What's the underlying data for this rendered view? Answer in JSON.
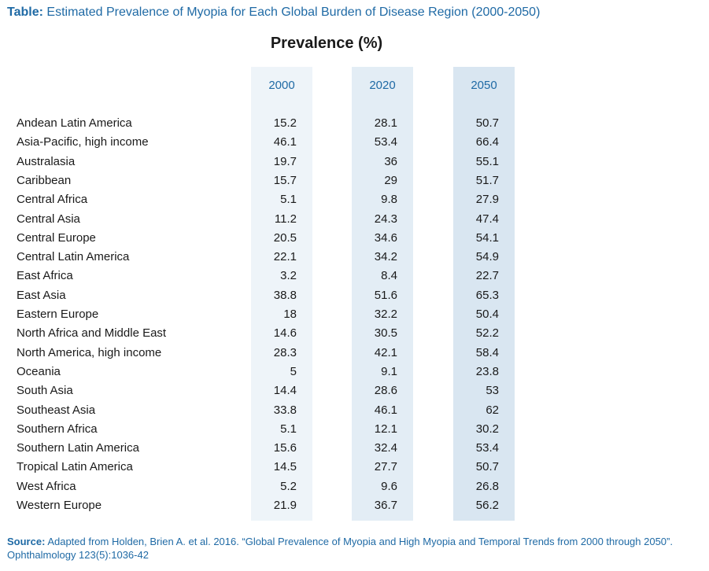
{
  "title": {
    "label": "Table:",
    "text": "Estimated Prevalence of Myopia for Each Global Burden of Disease Region (2000-2050)"
  },
  "heading": "Prevalence (%)",
  "source": {
    "label": "Source:",
    "text": "Adapted from Holden, Brien A. et al. 2016. “Global Prevalence of Myopia and High Myopia and Temporal Trends from 2000 through 2050”. Ophthalmology 123(5):1036-42"
  },
  "colors": {
    "accent": "#1f6aa5",
    "col_2000_bg": "#eef4f9",
    "col_2020_bg": "#e3edf5",
    "col_2050_bg": "#d9e6f1"
  },
  "chart_data": {
    "type": "table",
    "title": "Estimated Prevalence of Myopia for Each Global Burden of Disease Region (2000-2050)",
    "value_label": "Prevalence (%)",
    "columns": [
      "2000",
      "2020",
      "2050"
    ],
    "rows": [
      {
        "region": "Andean Latin America",
        "values": [
          "15.2",
          "28.1",
          "50.7"
        ]
      },
      {
        "region": "Asia-Pacific,  high income",
        "values": [
          "46.1",
          "53.4",
          "66.4"
        ]
      },
      {
        "region": "Australasia",
        "values": [
          "19.7",
          "36",
          "55.1"
        ]
      },
      {
        "region": "Caribbean",
        "values": [
          "15.7",
          "29",
          "51.7"
        ]
      },
      {
        "region": "Central Africa",
        "values": [
          "5.1",
          "9.8",
          "27.9"
        ]
      },
      {
        "region": "Central Asia",
        "values": [
          "11.2",
          "24.3",
          "47.4"
        ]
      },
      {
        "region": "Central Europe",
        "values": [
          "20.5",
          "34.6",
          "54.1"
        ]
      },
      {
        "region": "Central Latin America",
        "values": [
          "22.1",
          "34.2",
          "54.9"
        ]
      },
      {
        "region": "East Africa",
        "values": [
          "3.2",
          "8.4",
          "22.7"
        ]
      },
      {
        "region": "East Asia",
        "values": [
          "38.8",
          "51.6",
          "65.3"
        ]
      },
      {
        "region": "Eastern Europe",
        "values": [
          "18",
          "32.2",
          "50.4"
        ]
      },
      {
        "region": "North Africa and Middle East",
        "values": [
          "14.6",
          "30.5",
          "52.2"
        ]
      },
      {
        "region": "North America,  high income",
        "values": [
          "28.3",
          "42.1",
          "58.4"
        ]
      },
      {
        "region": "Oceania",
        "values": [
          "5",
          "9.1",
          "23.8"
        ]
      },
      {
        "region": "South Asia",
        "values": [
          "14.4",
          "28.6",
          "53"
        ]
      },
      {
        "region": "Southeast Asia",
        "values": [
          "33.8",
          "46.1",
          "62"
        ]
      },
      {
        "region": "Southern Africa",
        "values": [
          "5.1",
          "12.1",
          "30.2"
        ]
      },
      {
        "region": "Southern Latin America",
        "values": [
          "15.6",
          "32.4",
          "53.4"
        ]
      },
      {
        "region": "Tropical Latin America",
        "values": [
          "14.5",
          "27.7",
          "50.7"
        ]
      },
      {
        "region": "West Africa",
        "values": [
          "5.2",
          "9.6",
          "26.8"
        ]
      },
      {
        "region": "Western Europe",
        "values": [
          "21.9",
          "36.7",
          "56.2"
        ]
      }
    ]
  }
}
